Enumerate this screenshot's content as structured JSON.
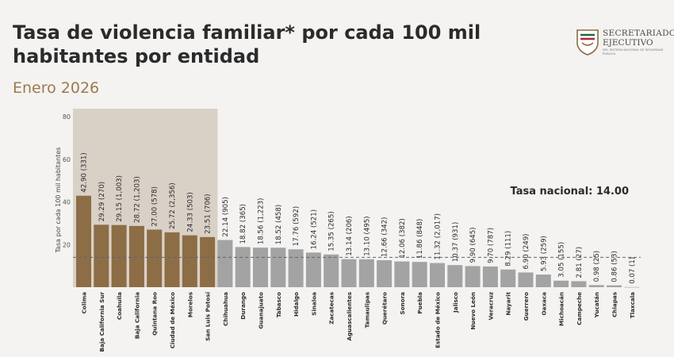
{
  "header": {
    "title": "Tasa de violencia familiar* por cada 100 mil habitantes por entidad",
    "subtitle": "Enero 2026"
  },
  "logo": {
    "line1": "SECRETARIADO",
    "line2": "EJECUTIVO",
    "line3": "DEL SISTEMA NACIONAL DE SEGURIDAD PÚBLICA"
  },
  "colors": {
    "highlight_bar": "#8c6d46",
    "highlight_bg": "#d9d1c6",
    "bar": "#a3a3a3",
    "text": "#2b2b2b"
  },
  "chart_data": {
    "type": "bar",
    "ylabel": "Tasa por cada 100 mil habitantes",
    "ylim": [
      0,
      80
    ],
    "yticks": [
      20,
      40,
      60,
      80
    ],
    "national_rate": 14.0,
    "national_label": "Tasa nacional: 14.00",
    "highlight_count": 8,
    "categories": [
      "Colima",
      "Baja California Sur",
      "Coahuila",
      "Baja California",
      "Quintana Roo",
      "Ciudad de México",
      "Morelos",
      "San Luis Potosí",
      "Chihuahua",
      "Durango",
      "Guanajuato",
      "Tabasco",
      "Hidalgo",
      "Sinaloa",
      "Zacatecas",
      "Aguascalientes",
      "Tamaulipas",
      "Querétaro",
      "Sonora",
      "Puebla",
      "Estado de México",
      "Jalisco",
      "Nuevo León",
      "Veracruz",
      "Nayarit",
      "Guerrero",
      "Oaxaca",
      "Michoacán",
      "Campeche",
      "Yucatán",
      "Chiapas",
      "Tlaxcala"
    ],
    "values": [
      42.9,
      29.29,
      29.15,
      28.72,
      27.0,
      25.72,
      24.33,
      23.51,
      22.14,
      18.82,
      18.56,
      18.52,
      17.76,
      16.24,
      15.35,
      13.14,
      13.1,
      12.66,
      12.06,
      11.86,
      11.32,
      10.37,
      9.9,
      9.7,
      8.29,
      6.9,
      5.93,
      3.05,
      2.81,
      0.98,
      0.86,
      0.07
    ],
    "labels": [
      "42.90 (331)",
      "29.29 (270)",
      "29.15 (1,003)",
      "28.72 (1,203)",
      "27.00 (578)",
      "25.72 (2,356)",
      "24.33 (503)",
      "23.51 (706)",
      "22.14 (905)",
      "18.82 (365)",
      "18.56 (1,223)",
      "18.52 (458)",
      "17.76 (592)",
      "16.24 (521)",
      "15.35 (265)",
      "13.14 (206)",
      "13.10 (495)",
      "12.66 (342)",
      "12.06 (382)",
      "11.86 (848)",
      "11.32 (2,017)",
      "10.37 (931)",
      "9.90 (645)",
      "9.70 (787)",
      "8.29 (111)",
      "6.90 (249)",
      "5.93 (259)",
      "3.05 (155)",
      "2.81 (27)",
      "0.98 (25)",
      "0.86 (53)",
      "0.07 (1)"
    ]
  }
}
